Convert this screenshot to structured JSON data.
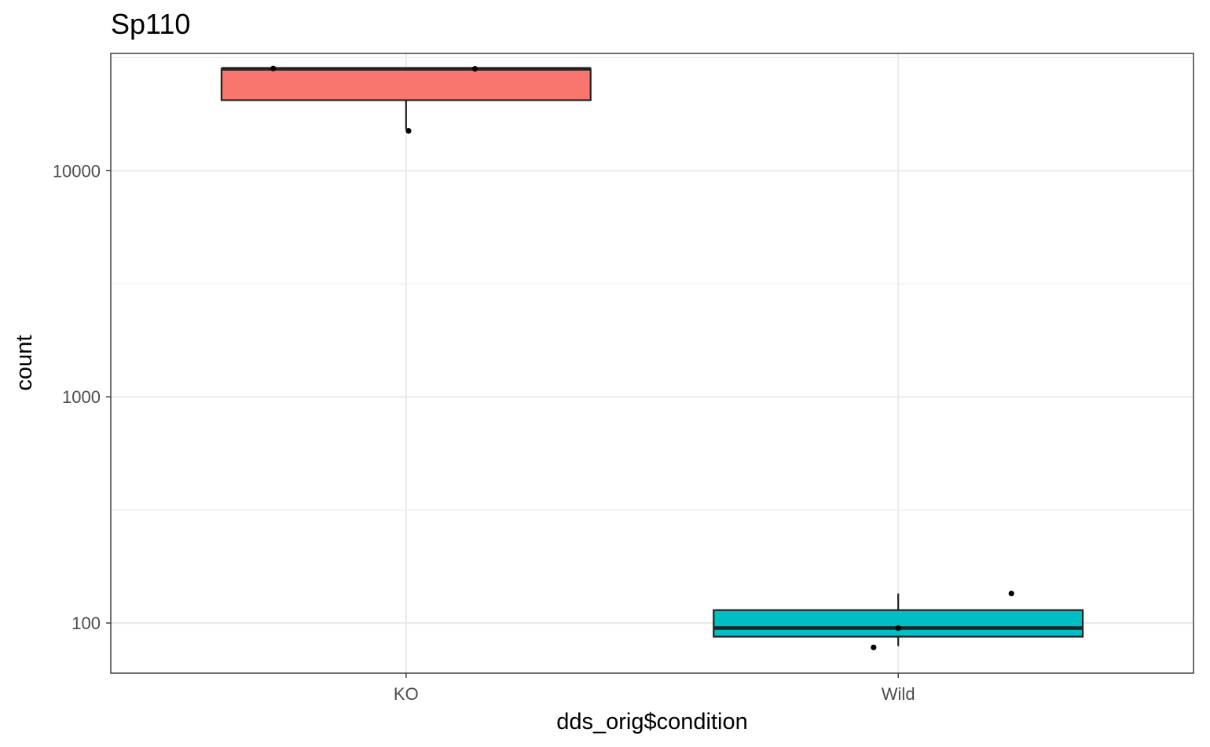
{
  "chart_data": {
    "type": "boxplot",
    "title": "Sp110",
    "xlabel": "dds_orig$condition",
    "ylabel": "count",
    "y_scale": "log10",
    "ylim": [
      60,
      33000
    ],
    "y_ticks": [
      100,
      1000,
      10000
    ],
    "y_tick_labels": [
      "100",
      "1000",
      "10000"
    ],
    "categories": [
      "KO",
      "Wild"
    ],
    "grid": true,
    "legend": "none",
    "boxes": [
      {
        "category": "KO",
        "fill": "#F8766D",
        "whisker_low": 15200,
        "q1": 20500,
        "median": 28200,
        "q3": 28200,
        "whisker_high": 28200
      },
      {
        "category": "Wild",
        "fill": "#00BFC4",
        "whisker_low": 79,
        "q1": 87,
        "median": 95,
        "q3": 114,
        "whisker_high": 135
      }
    ],
    "points": [
      {
        "category": "KO",
        "jitter": -0.27,
        "y": 28300
      },
      {
        "category": "KO",
        "jitter": 0.14,
        "y": 28200
      },
      {
        "category": "KO",
        "jitter": 0.005,
        "y": 15000
      },
      {
        "category": "Wild",
        "jitter": -0.05,
        "y": 78
      },
      {
        "category": "Wild",
        "jitter": 0.0,
        "y": 95
      },
      {
        "category": "Wild",
        "jitter": 0.23,
        "y": 135
      }
    ]
  }
}
